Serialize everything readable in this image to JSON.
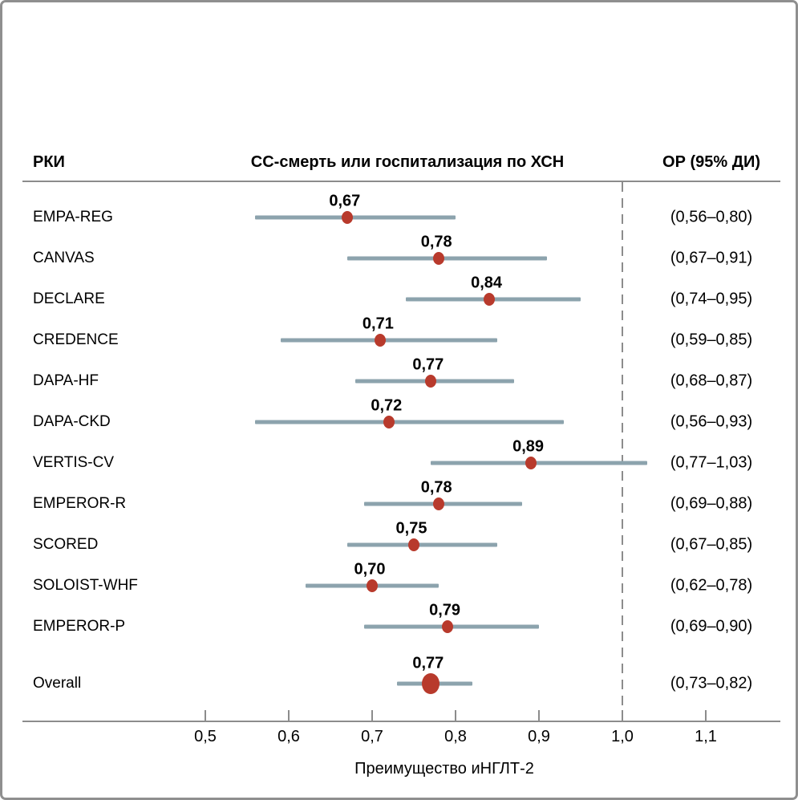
{
  "header": {
    "col_trial": "РКИ",
    "col_outcome": "СС-смерть или госпитализация по ХСН",
    "col_effect": "ОР (95% ДИ)"
  },
  "chart_data": {
    "type": "forest",
    "title": "СС-смерть или госпитализация по ХСН",
    "xlabel": "Преимущество иНГЛТ-2",
    "x_ticks": [
      {
        "value": 0.5,
        "label": "0,5"
      },
      {
        "value": 0.6,
        "label": "0,6"
      },
      {
        "value": 0.7,
        "label": "0,7"
      },
      {
        "value": 0.8,
        "label": "0,8"
      },
      {
        "value": 0.9,
        "label": "0,9"
      },
      {
        "value": 1.0,
        "label": "1,0"
      },
      {
        "value": 1.1,
        "label": "1,1"
      }
    ],
    "reference_line": 1.0,
    "grid": false,
    "rows": [
      {
        "label": "EMPA-REG",
        "estimate": 0.67,
        "ci_low": 0.56,
        "ci_high": 0.8,
        "estimate_label": "0,67",
        "ci_label": "(0,56–0,80)",
        "is_overall": false
      },
      {
        "label": "CANVAS",
        "estimate": 0.78,
        "ci_low": 0.67,
        "ci_high": 0.91,
        "estimate_label": "0,78",
        "ci_label": "(0,67–0,91)",
        "is_overall": false
      },
      {
        "label": "DECLARE",
        "estimate": 0.84,
        "ci_low": 0.74,
        "ci_high": 0.95,
        "estimate_label": "0,84",
        "ci_label": "(0,74–0,95)",
        "is_overall": false
      },
      {
        "label": "CREDENCE",
        "estimate": 0.71,
        "ci_low": 0.59,
        "ci_high": 0.85,
        "estimate_label": "0,71",
        "ci_label": "(0,59–0,85)",
        "is_overall": false
      },
      {
        "label": "DAPA-HF",
        "estimate": 0.77,
        "ci_low": 0.68,
        "ci_high": 0.87,
        "estimate_label": "0,77",
        "ci_label": "(0,68–0,87)",
        "is_overall": false
      },
      {
        "label": "DAPA-CKD",
        "estimate": 0.72,
        "ci_low": 0.56,
        "ci_high": 0.93,
        "estimate_label": "0,72",
        "ci_label": "(0,56–0,93)",
        "is_overall": false
      },
      {
        "label": "VERTIS-CV",
        "estimate": 0.89,
        "ci_low": 0.77,
        "ci_high": 1.03,
        "estimate_label": "0,89",
        "ci_label": "(0,77–1,03)",
        "is_overall": false
      },
      {
        "label": "EMPEROR-R",
        "estimate": 0.78,
        "ci_low": 0.69,
        "ci_high": 0.88,
        "estimate_label": "0,78",
        "ci_label": "(0,69–0,88)",
        "is_overall": false
      },
      {
        "label": "SCORED",
        "estimate": 0.75,
        "ci_low": 0.67,
        "ci_high": 0.85,
        "estimate_label": "0,75",
        "ci_label": "(0,67–0,85)",
        "is_overall": false
      },
      {
        "label": "SOLOIST-WHF",
        "estimate": 0.7,
        "ci_low": 0.62,
        "ci_high": 0.78,
        "estimate_label": "0,70",
        "ci_label": "(0,62–0,78)",
        "is_overall": false
      },
      {
        "label": "EMPEROR-P",
        "estimate": 0.79,
        "ci_low": 0.69,
        "ci_high": 0.9,
        "estimate_label": "0,79",
        "ci_label": "(0,69–0,90)",
        "is_overall": false
      },
      {
        "label": "Overall",
        "estimate": 0.77,
        "ci_low": 0.73,
        "ci_high": 0.82,
        "estimate_label": "0,77",
        "ci_label": "(0,73–0,82)",
        "is_overall": true
      }
    ]
  },
  "colors": {
    "point": "#b83a2c",
    "ci_line": "#8ca3ad",
    "axis_line": "#8c8c8c",
    "reference_line": "#8c8c8c",
    "text": "#000000",
    "frame_border": "#8f8f8f"
  }
}
